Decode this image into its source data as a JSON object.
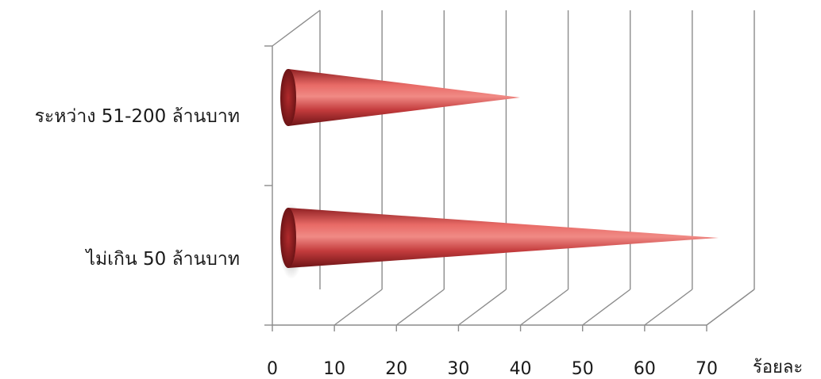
{
  "chart_data": {
    "type": "bar",
    "orientation": "horizontal",
    "bar_shape": "cone",
    "style": "3d",
    "categories": [
      "ระหว่าง 51-200 ล้านบาท",
      "ไม่เกิน 50 ล้านบาท"
    ],
    "values": [
      38,
      70
    ],
    "x_ticks": [
      "0",
      "10",
      "20",
      "30",
      "40",
      "50",
      "60",
      "70"
    ],
    "xlabel": "ร้อยละ",
    "xlim": [
      0,
      70
    ],
    "grid": true,
    "legend": "none",
    "bar_color": "#d9534f"
  }
}
